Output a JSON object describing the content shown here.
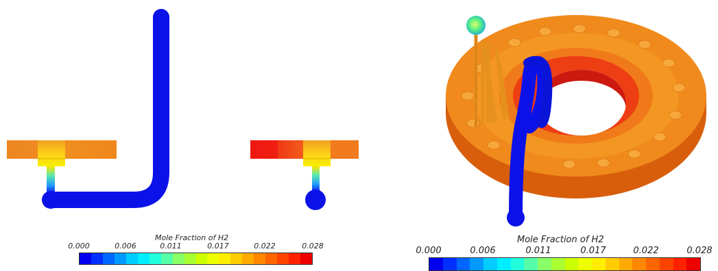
{
  "colorbars": [
    {
      "title": "Mole Fraction of H2",
      "ticks": [
        "0.000",
        "0.006",
        "0.011",
        "0.017",
        "0.022",
        "0.028"
      ]
    },
    {
      "title": "Mole Fraction of H2",
      "ticks": [
        "0.000",
        "0.006",
        "0.011",
        "0.017",
        "0.022",
        "0.028"
      ]
    }
  ],
  "colormap": [
    "#0000ee",
    "#0030ff",
    "#0066ff",
    "#0099ff",
    "#00ccff",
    "#00eeff",
    "#22ffdd",
    "#55ffaa",
    "#88ff66",
    "#aaff33",
    "#ccff00",
    "#eeff00",
    "#ffee00",
    "#ffcc00",
    "#ffaa00",
    "#ff8800",
    "#ff6600",
    "#ff4400",
    "#ff2200",
    "#ee0000"
  ],
  "colors": {
    "pipe_blue": "#0b12e8",
    "low_orange": "#f08a1c",
    "dark_orange": "#e06a10",
    "hot_red": "#ee1111",
    "yellow": "#ffe000",
    "green": "#7ee04a",
    "cyan": "#33ccdd"
  }
}
